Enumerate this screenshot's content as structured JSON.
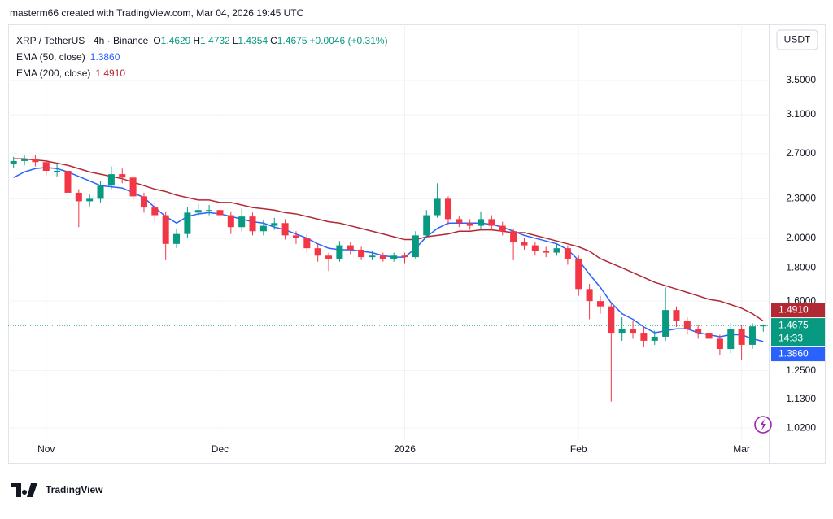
{
  "caption": "masterm66 created with TradingView.com, Mar 04, 2026 19:45 UTC",
  "brand": "TradingView",
  "chart_data": {
    "type": "candlestick",
    "header": {
      "symbol": "XRP / TetherUS · 4h · Binance",
      "ohlc_labels": [
        "O",
        "H",
        "L",
        "C"
      ],
      "change": "+0.0046 (+0.31%)"
    },
    "currency": "USDT",
    "countdown": "14:33",
    "categories": [
      null,
      null,
      null,
      "Nov",
      null,
      null,
      null,
      null,
      null,
      null,
      null,
      null,
      null,
      null,
      null,
      null,
      null,
      null,
      null,
      "Dec",
      null,
      null,
      null,
      null,
      null,
      null,
      null,
      null,
      null,
      null,
      null,
      null,
      null,
      null,
      null,
      null,
      "2026",
      null,
      null,
      null,
      null,
      null,
      null,
      null,
      null,
      null,
      null,
      null,
      null,
      null,
      null,
      null,
      "Feb",
      null,
      null,
      null,
      null,
      null,
      null,
      null,
      null,
      null,
      null,
      null,
      null,
      null,
      null,
      "Mar",
      null,
      null
    ],
    "open": [
      2.6,
      2.63,
      2.65,
      2.62,
      2.54,
      2.54,
      2.35,
      2.28,
      2.3,
      2.41,
      2.51,
      2.48,
      2.32,
      2.23,
      2.17,
      1.96,
      2.03,
      2.19,
      2.21,
      2.21,
      2.17,
      2.08,
      2.16,
      2.05,
      2.09,
      2.11,
      2.02,
      2.0,
      1.93,
      1.88,
      1.86,
      1.95,
      1.92,
      1.87,
      1.88,
      1.86,
      1.88,
      1.87,
      2.02,
      2.17,
      2.3,
      2.14,
      2.11,
      2.09,
      2.14,
      2.09,
      2.05,
      1.97,
      1.95,
      1.91,
      1.9,
      1.93,
      1.86,
      1.67,
      1.6,
      1.57,
      1.43,
      1.45,
      1.43,
      1.39,
      1.41,
      1.55,
      1.49,
      1.45,
      1.43,
      1.4,
      1.35,
      1.45,
      1.37,
      1.4629
    ],
    "high": [
      2.67,
      2.69,
      2.69,
      2.64,
      2.6,
      2.57,
      2.38,
      2.34,
      2.45,
      2.58,
      2.56,
      2.5,
      2.35,
      2.27,
      2.2,
      2.07,
      2.23,
      2.26,
      2.25,
      2.25,
      2.2,
      2.22,
      2.19,
      2.13,
      2.15,
      2.14,
      2.05,
      2.03,
      1.96,
      1.9,
      1.98,
      1.97,
      1.94,
      1.91,
      1.9,
      1.9,
      1.9,
      2.05,
      2.21,
      2.43,
      2.32,
      2.16,
      2.14,
      2.2,
      2.17,
      2.12,
      2.07,
      2.0,
      1.97,
      1.94,
      1.96,
      1.95,
      1.88,
      1.7,
      1.63,
      1.59,
      1.51,
      1.49,
      1.46,
      1.44,
      1.68,
      1.57,
      1.51,
      1.47,
      1.45,
      1.42,
      1.48,
      1.47,
      1.48,
      1.4732
    ],
    "low": [
      2.57,
      2.59,
      2.58,
      2.5,
      2.49,
      2.31,
      2.08,
      2.24,
      2.27,
      2.38,
      2.43,
      2.28,
      2.19,
      2.12,
      1.85,
      1.93,
      2.0,
      2.16,
      2.17,
      2.13,
      2.03,
      2.05,
      2.02,
      2.02,
      2.06,
      1.99,
      1.96,
      1.9,
      1.84,
      1.78,
      1.84,
      1.89,
      1.85,
      1.85,
      1.84,
      1.84,
      1.83,
      1.86,
      2.0,
      2.15,
      2.1,
      2.08,
      2.06,
      2.07,
      2.06,
      2.02,
      1.85,
      1.92,
      1.88,
      1.87,
      1.88,
      1.82,
      1.63,
      1.5,
      1.53,
      1.12,
      1.39,
      1.4,
      1.36,
      1.37,
      1.39,
      1.46,
      1.42,
      1.4,
      1.37,
      1.32,
      1.33,
      1.3,
      1.35,
      1.4354
    ],
    "close": [
      2.63,
      2.65,
      2.62,
      2.54,
      2.54,
      2.35,
      2.28,
      2.3,
      2.41,
      2.51,
      2.48,
      2.32,
      2.23,
      2.17,
      1.96,
      2.03,
      2.19,
      2.21,
      2.21,
      2.17,
      2.08,
      2.16,
      2.05,
      2.09,
      2.11,
      2.02,
      2.0,
      1.93,
      1.88,
      1.86,
      1.95,
      1.92,
      1.87,
      1.88,
      1.86,
      1.88,
      1.87,
      2.02,
      2.17,
      2.3,
      2.14,
      2.11,
      2.09,
      2.14,
      2.09,
      2.05,
      1.97,
      1.95,
      1.91,
      1.9,
      1.93,
      1.86,
      1.67,
      1.6,
      1.57,
      1.43,
      1.45,
      1.43,
      1.39,
      1.41,
      1.55,
      1.49,
      1.45,
      1.43,
      1.4,
      1.35,
      1.45,
      1.37,
      1.4629,
      1.4675
    ],
    "up_color": "#089981",
    "down_color": "#f23645",
    "series": [
      {
        "name": "EMA (50, close)",
        "color": "#2962ff",
        "last_label": "1.3860",
        "values": [
          2.48,
          2.53,
          2.56,
          2.57,
          2.56,
          2.53,
          2.49,
          2.45,
          2.41,
          2.4,
          2.39,
          2.35,
          2.31,
          2.23,
          2.16,
          2.11,
          2.16,
          2.18,
          2.19,
          2.18,
          2.16,
          2.14,
          2.12,
          2.11,
          2.08,
          2.06,
          2.03,
          2.0,
          1.96,
          1.93,
          1.92,
          1.92,
          1.91,
          1.9,
          1.88,
          1.87,
          1.87,
          1.93,
          2.01,
          2.07,
          2.11,
          2.11,
          2.11,
          2.11,
          2.1,
          2.08,
          2.05,
          2.02,
          2.0,
          1.98,
          1.96,
          1.92,
          1.85,
          1.76,
          1.68,
          1.59,
          1.53,
          1.5,
          1.46,
          1.43,
          1.44,
          1.45,
          1.45,
          1.43,
          1.42,
          1.41,
          1.42,
          1.42,
          1.4,
          1.386
        ]
      },
      {
        "name": "EMA (200, close)",
        "color": "#b22833",
        "last_label": "1.4910",
        "values": [
          2.65,
          2.65,
          2.64,
          2.63,
          2.61,
          2.59,
          2.56,
          2.53,
          2.51,
          2.49,
          2.47,
          2.44,
          2.41,
          2.38,
          2.36,
          2.33,
          2.31,
          2.29,
          2.29,
          2.27,
          2.27,
          2.25,
          2.23,
          2.22,
          2.21,
          2.19,
          2.18,
          2.16,
          2.14,
          2.12,
          2.11,
          2.09,
          2.07,
          2.05,
          2.03,
          2.01,
          1.99,
          1.99,
          2.01,
          2.02,
          2.03,
          2.05,
          2.05,
          2.06,
          2.06,
          2.05,
          2.04,
          2.04,
          2.02,
          2.0,
          1.98,
          1.96,
          1.94,
          1.91,
          1.86,
          1.83,
          1.8,
          1.77,
          1.74,
          1.71,
          1.69,
          1.67,
          1.65,
          1.63,
          1.61,
          1.6,
          1.58,
          1.56,
          1.53,
          1.491
        ]
      }
    ],
    "ylim": [
      0.98,
      4.27
    ],
    "log_scale": true,
    "yticks": [
      {
        "value": 1.02,
        "label": "1.0200"
      },
      {
        "value": 1.13,
        "label": "1.1300"
      },
      {
        "value": 1.25,
        "label": "1.2500"
      },
      {
        "value": 1.6,
        "label": "1.6000"
      },
      {
        "value": 1.8,
        "label": "1.8000"
      },
      {
        "value": 2.0,
        "label": "2.0000"
      },
      {
        "value": 2.3,
        "label": "2.3000"
      },
      {
        "value": 2.7,
        "label": "2.7000"
      },
      {
        "value": 3.1,
        "label": "3.1000"
      },
      {
        "value": 3.5,
        "label": "3.5000"
      }
    ],
    "grid": true
  }
}
